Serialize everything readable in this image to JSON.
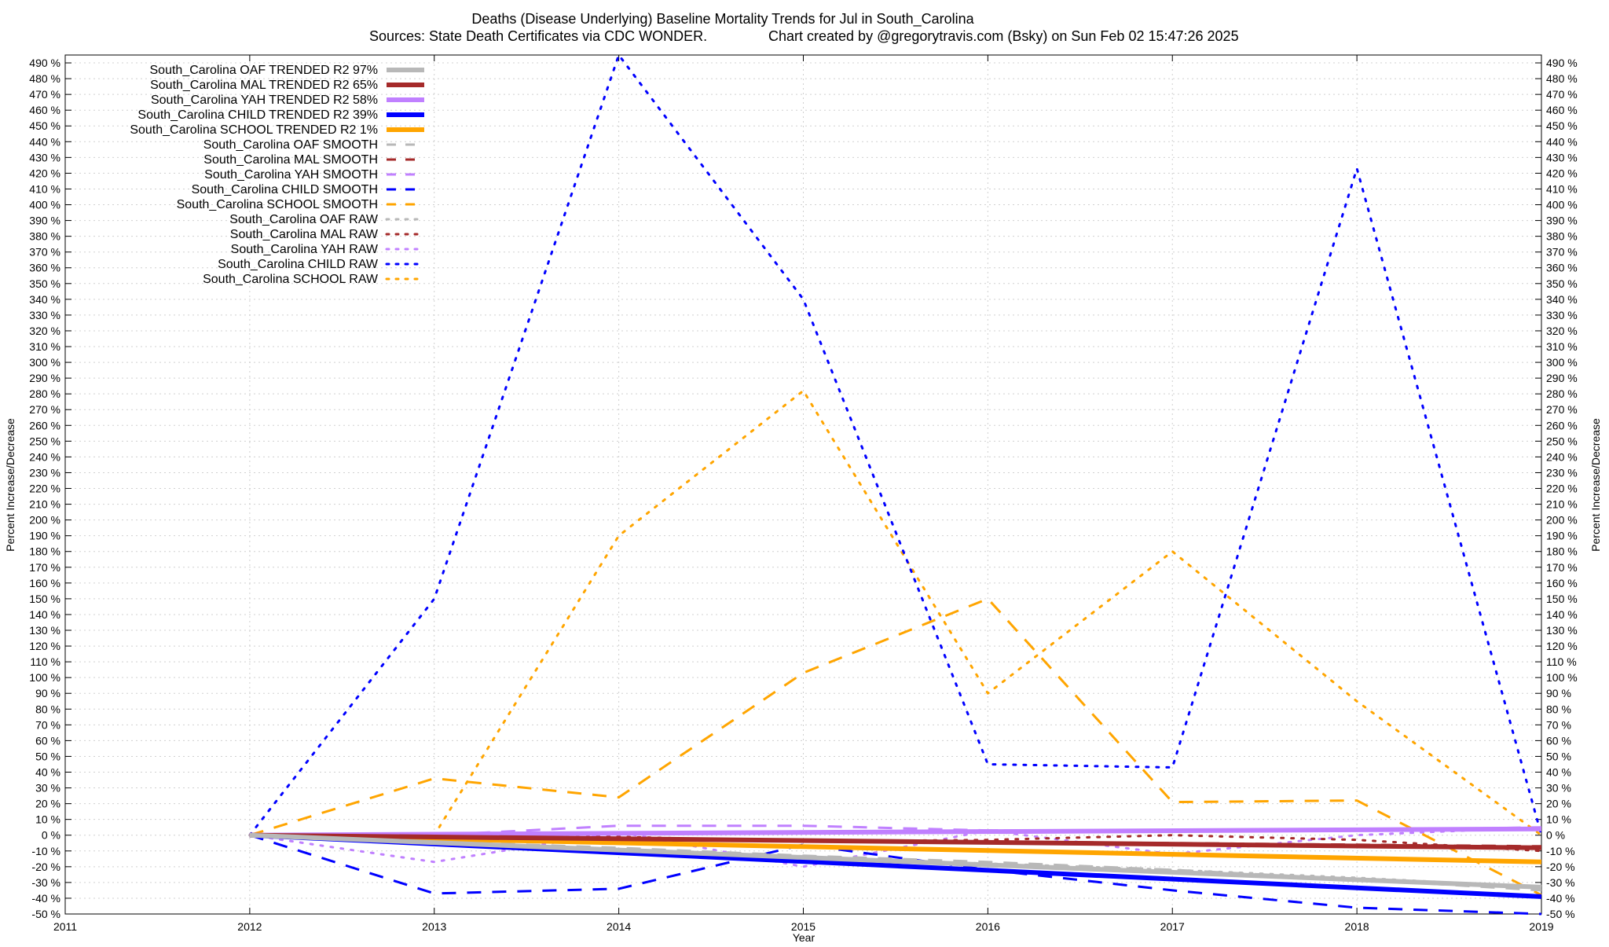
{
  "chart_data": {
    "type": "line",
    "title": "Deaths (Disease Underlying)  Baseline Mortality Trends for Jul in South_Carolina",
    "subtitle_left": "Sources: State Death Certificates via CDC WONDER.",
    "subtitle_right": "Chart created by @gregorytravis.com (Bsky) on Sun Feb 02 15:47:26 2025",
    "xlabel": "Year",
    "ylabel": "Percent Increase/Decrease",
    "ylabel_right": "Percent Increase/Decrease",
    "xlim": [
      2011,
      2019
    ],
    "ylim": [
      -50,
      495
    ],
    "x_ticks": [
      "2011",
      "2012",
      "2013",
      "2014",
      "2015",
      "2016",
      "2017",
      "2018",
      "2019"
    ],
    "y_tick_values": [
      -50,
      -40,
      -30,
      -20,
      -10,
      0,
      10,
      20,
      30,
      40,
      50,
      60,
      70,
      80,
      90,
      100,
      110,
      120,
      130,
      140,
      150,
      160,
      170,
      180,
      190,
      200,
      210,
      220,
      230,
      240,
      250,
      260,
      270,
      280,
      290,
      300,
      310,
      320,
      330,
      340,
      350,
      360,
      370,
      380,
      390,
      400,
      410,
      420,
      430,
      440,
      450,
      460,
      470,
      480,
      490
    ],
    "y_tick_suffix": " %",
    "grid": true,
    "legend_position": "top-left",
    "series": [
      {
        "name": "South_Carolina OAF TRENDED R2  97%",
        "color": "#b8b8b8",
        "style": "solid",
        "width": 6,
        "x": [
          2012,
          2019
        ],
        "y": [
          0,
          -33
        ]
      },
      {
        "name": "South_Carolina MAL TRENDED R2  65%",
        "color": "#a52a2a",
        "style": "solid",
        "width": 6,
        "x": [
          2012,
          2019
        ],
        "y": [
          0,
          -8
        ]
      },
      {
        "name": "South_Carolina YAH TRENDED R2  58%",
        "color": "#c080ff",
        "style": "solid",
        "width": 6,
        "x": [
          2012,
          2019
        ],
        "y": [
          0,
          4
        ]
      },
      {
        "name": "South_Carolina CHILD TRENDED R2  39%",
        "color": "#0000ff",
        "style": "solid",
        "width": 6,
        "x": [
          2012,
          2019
        ],
        "y": [
          0,
          -39
        ]
      },
      {
        "name": "South_Carolina SCHOOL TRENDED R2   1%",
        "color": "#ffa500",
        "style": "solid",
        "width": 6,
        "x": [
          2012,
          2019
        ],
        "y": [
          0,
          -17
        ]
      },
      {
        "name": "South_Carolina OAF SMOOTH",
        "color": "#b8b8b8",
        "style": "dashed",
        "width": 3,
        "x": [
          2012,
          2013,
          2014,
          2015,
          2016,
          2017,
          2018,
          2019
        ],
        "y": [
          0,
          -4,
          -8,
          -13,
          -17,
          -22,
          -28,
          -35
        ]
      },
      {
        "name": "South_Carolina MAL SMOOTH",
        "color": "#a52a2a",
        "style": "dashed",
        "width": 3,
        "x": [
          2012,
          2013,
          2014,
          2015,
          2016,
          2017,
          2018,
          2019
        ],
        "y": [
          0,
          -1,
          -2,
          -3,
          -4,
          -5,
          -6,
          -7
        ]
      },
      {
        "name": "South_Carolina YAH SMOOTH",
        "color": "#c080ff",
        "style": "dashed",
        "width": 3,
        "x": [
          2012,
          2013,
          2014,
          2015,
          2016,
          2017,
          2018,
          2019
        ],
        "y": [
          0,
          0,
          6,
          6,
          3,
          3,
          3,
          5
        ]
      },
      {
        "name": "South_Carolina CHILD SMOOTH",
        "color": "#0000ff",
        "style": "dashed",
        "width": 3,
        "x": [
          2012,
          2013,
          2014,
          2015,
          2016,
          2017,
          2018,
          2019
        ],
        "y": [
          0,
          -37,
          -34,
          -6,
          -22,
          -35,
          -46,
          -50
        ]
      },
      {
        "name": "South_Carolina SCHOOL SMOOTH",
        "color": "#ffa500",
        "style": "dashed",
        "width": 3,
        "x": [
          2012,
          2013,
          2014,
          2015,
          2016,
          2017,
          2018,
          2019
        ],
        "y": [
          0,
          36,
          24,
          103,
          150,
          21,
          22,
          -38
        ]
      },
      {
        "name": "South_Carolina OAF RAW",
        "color": "#b8b8b8",
        "style": "dotted",
        "width": 3,
        "x": [
          2012,
          2013,
          2014,
          2015,
          2016,
          2017,
          2018,
          2019
        ],
        "y": [
          0,
          -6,
          -10,
          -14,
          -18,
          -22,
          -27,
          -33
        ]
      },
      {
        "name": "South_Carolina MAL RAW",
        "color": "#a52a2a",
        "style": "dotted",
        "width": 3,
        "x": [
          2012,
          2013,
          2014,
          2015,
          2016,
          2017,
          2018,
          2019
        ],
        "y": [
          0,
          -2,
          -1,
          -4,
          -3,
          0,
          -3,
          -10
        ]
      },
      {
        "name": "South_Carolina YAH RAW",
        "color": "#c080ff",
        "style": "dotted",
        "width": 3,
        "x": [
          2012,
          2013,
          2014,
          2015,
          2016,
          2017,
          2018,
          2019
        ],
        "y": [
          0,
          -17,
          2,
          -20,
          3,
          -12,
          0,
          5
        ]
      },
      {
        "name": "South_Carolina CHILD RAW",
        "color": "#0000ff",
        "style": "dotted",
        "width": 3,
        "x": [
          2012,
          2013,
          2014,
          2015,
          2016,
          2017,
          2018,
          2019
        ],
        "y": [
          0,
          150,
          495,
          340,
          45,
          43,
          423,
          0
        ]
      },
      {
        "name": "South_Carolina SCHOOL RAW",
        "color": "#ffa500",
        "style": "dotted",
        "width": 3,
        "x": [
          2012,
          2013,
          2014,
          2015,
          2016,
          2017,
          2018,
          2019
        ],
        "y": [
          0,
          0,
          190,
          282,
          90,
          180,
          85,
          0
        ]
      }
    ]
  }
}
